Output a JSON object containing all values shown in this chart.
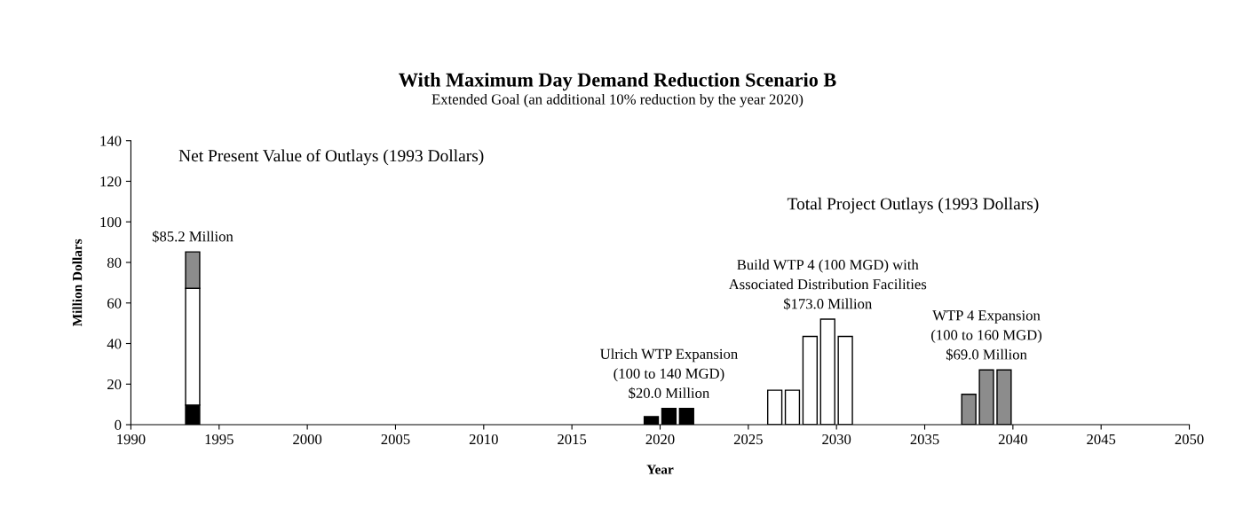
{
  "chart_data": {
    "type": "bar",
    "stacked": true,
    "title": "With Maximum Day Demand Reduction Scenario B",
    "subtitle": "Extended Goal (an additional 10% reduction by the year 2020)",
    "xlabel": "Year",
    "ylabel": "Million Dollars",
    "x": [
      1993.5,
      2019.5,
      2020.5,
      2021.5,
      2026.5,
      2027.5,
      2028.5,
      2029.5,
      2030.5,
      2037.5,
      2038.5,
      2039.5
    ],
    "series": [
      {
        "color": "#000000",
        "values": [
          9.7,
          4,
          8,
          8,
          null,
          null,
          null,
          null,
          null,
          null,
          null,
          null
        ]
      },
      {
        "color": "#ffffff",
        "values": [
          57.5,
          null,
          null,
          null,
          17,
          17,
          43.5,
          52,
          43.5,
          null,
          null,
          null
        ]
      },
      {
        "color": "#8c8c8c",
        "values": [
          18,
          null,
          null,
          null,
          null,
          null,
          null,
          null,
          null,
          15,
          27,
          27
        ]
      }
    ],
    "xlim": [
      1990,
      2050
    ],
    "xticks": [
      1990,
      1995,
      2000,
      2005,
      2010,
      2015,
      2020,
      2025,
      2030,
      2035,
      2040,
      2045,
      2050
    ],
    "ylim": [
      0,
      140
    ],
    "yticks": [
      0,
      20,
      40,
      60,
      80,
      100,
      120,
      140
    ],
    "grid": false,
    "legend": false,
    "annotations": [
      "Net Present Value of Outlays (1993 Dollars)",
      "Total Project Outlays (1993 Dollars)",
      {
        "text": "$85.2 Million",
        "x": 1993.5,
        "y": 85.2
      },
      {
        "text": "Ulrich WTP Expansion\n(100 to 140 MGD)\n$20.0 Million",
        "x": 2020.5,
        "y": 8
      },
      {
        "text": "Build WTP 4 (100 MGD) with\nAssociated Distribution Facilities\n$173.0 Million",
        "x": 2029.5,
        "y": 52
      },
      {
        "text": "WTP 4 Expansion\n(100 to 160 MGD)\n$69.0 Million",
        "x": 2038.5,
        "y": 27
      }
    ]
  }
}
